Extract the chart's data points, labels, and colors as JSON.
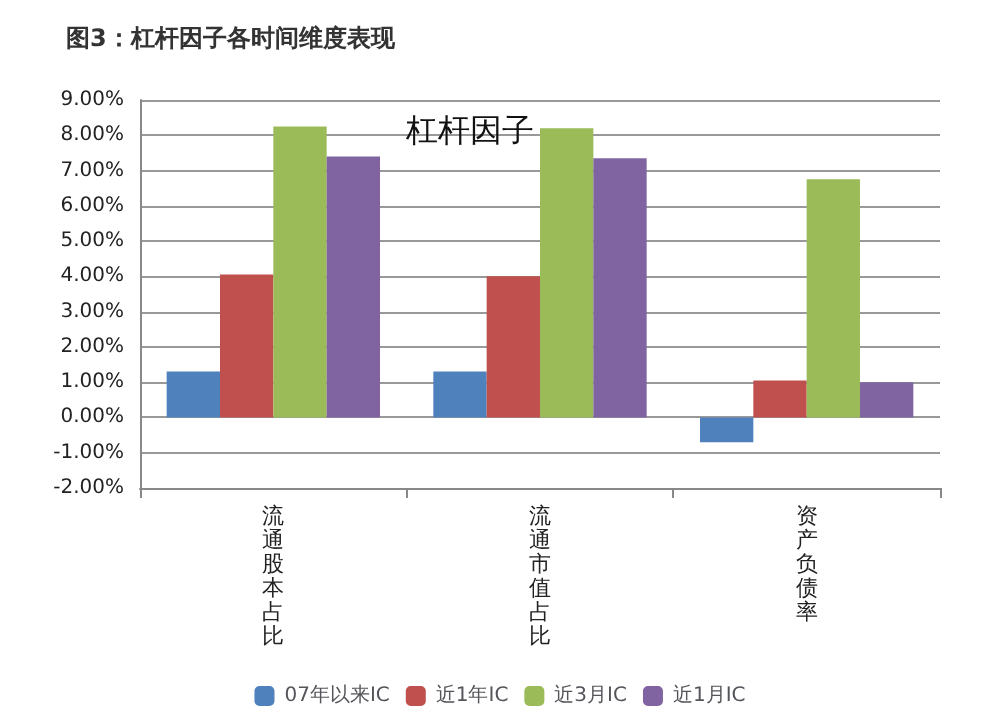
{
  "chart_data": {
    "type": "bar",
    "title": "图3：杠杆因子各时间维度表现",
    "subtitle": "杠杆因子",
    "categories": [
      "流通股本占比",
      "流通市值占比",
      "资产负债率"
    ],
    "series": [
      {
        "name": "07年以来IC",
        "color": "#4f81bd",
        "values": [
          1.3,
          1.3,
          -0.7
        ]
      },
      {
        "name": "近1年IC",
        "color": "#c0504d",
        "values": [
          4.05,
          4.0,
          1.05
        ]
      },
      {
        "name": "近3月IC",
        "color": "#9bbb59",
        "values": [
          8.25,
          8.2,
          6.75
        ]
      },
      {
        "name": "近1月IC",
        "color": "#8064a2",
        "values": [
          7.4,
          7.35,
          1.0
        ]
      }
    ],
    "ylim": [
      -2,
      9
    ],
    "yticks": [
      {
        "value": -2,
        "label": "-2.00%"
      },
      {
        "value": -1,
        "label": "-1.00%"
      },
      {
        "value": 0,
        "label": "0.00%"
      },
      {
        "value": 1,
        "label": "1.00%"
      },
      {
        "value": 2,
        "label": "2.00%"
      },
      {
        "value": 3,
        "label": "3.00%"
      },
      {
        "value": 4,
        "label": "4.00%"
      },
      {
        "value": 5,
        "label": "5.00%"
      },
      {
        "value": 6,
        "label": "6.00%"
      },
      {
        "value": 7,
        "label": "7.00%"
      },
      {
        "value": 8,
        "label": "8.00%"
      },
      {
        "value": 9,
        "label": "9.00%"
      }
    ],
    "grid": true,
    "legend": "bottom"
  }
}
